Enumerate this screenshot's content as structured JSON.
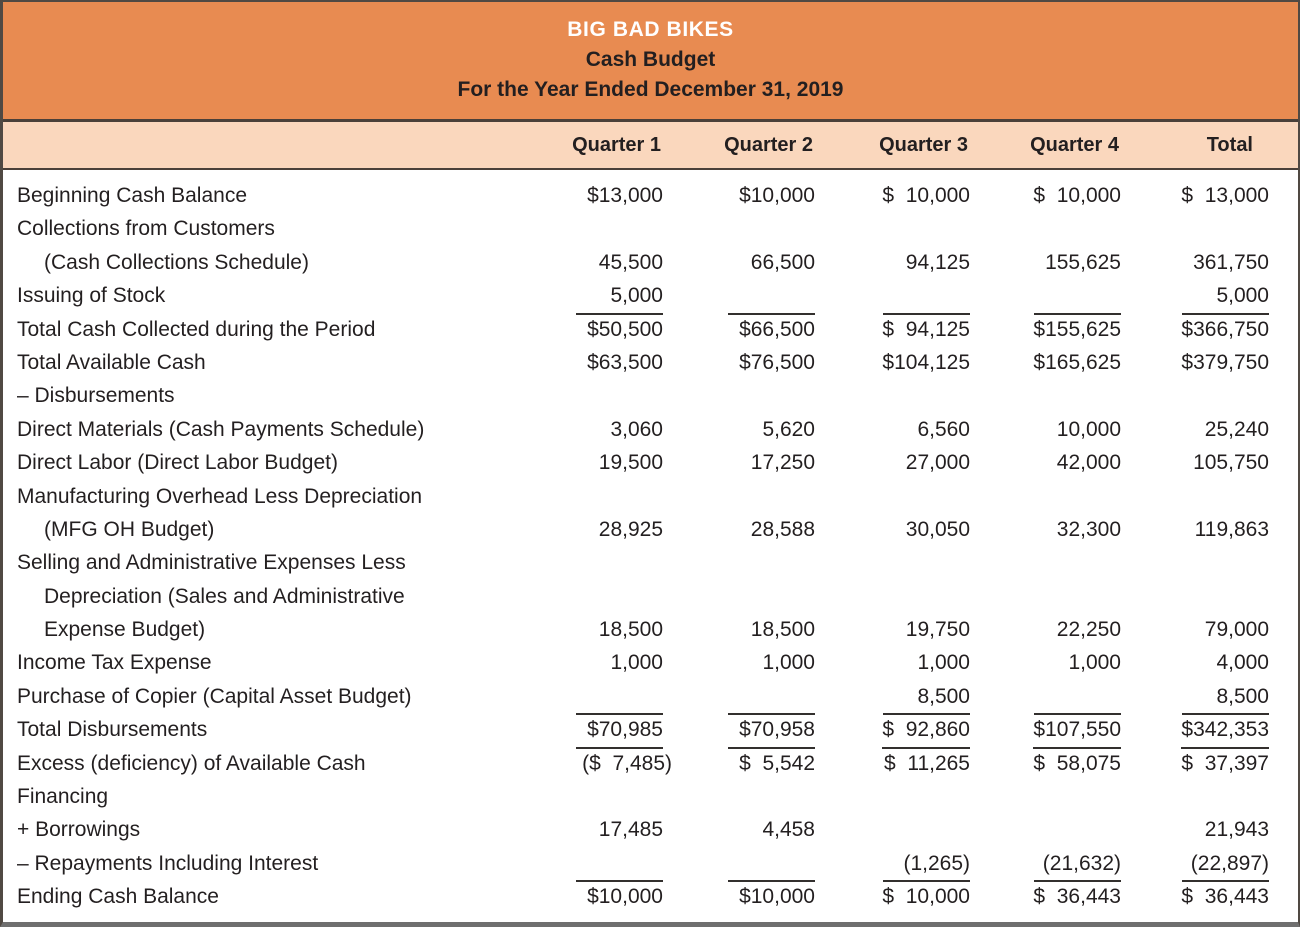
{
  "title_band": {
    "company": "BIG BAD BIKES",
    "report": "Cash Budget",
    "period": "For the Year Ended December 31, 2019"
  },
  "table": {
    "columns": [
      "Quarter 1",
      "Quarter 2",
      "Quarter 3",
      "Quarter 4",
      "Total"
    ],
    "rows": [
      {
        "label": "Beginning Cash Balance",
        "cells": [
          "$13,000",
          "$10,000",
          "$  10,000",
          "$  10,000",
          "$  13,000"
        ]
      },
      {
        "label": "Collections from Customers",
        "cells": [
          "",
          "",
          "",
          "",
          ""
        ]
      },
      {
        "label": "(Cash Collections Schedule)",
        "indent": 1,
        "cells": [
          "45,500",
          "66,500",
          "94,125",
          "155,625",
          "361,750"
        ]
      },
      {
        "label": "Issuing of Stock",
        "cells": [
          "5,000",
          "",
          "",
          "",
          "5,000"
        ],
        "ul": [
          1,
          1,
          1,
          1,
          1
        ]
      },
      {
        "label": "Total Cash Collected during the Period",
        "cells": [
          "$50,500",
          "$66,500",
          "$  94,125",
          "$155,625",
          "$366,750"
        ]
      },
      {
        "label": "Total Available Cash",
        "cells": [
          "$63,500",
          "$76,500",
          "$104,125",
          "$165,625",
          "$379,750"
        ]
      },
      {
        "label": "– Disbursements",
        "cells": [
          "",
          "",
          "",
          "",
          ""
        ]
      },
      {
        "label": "Direct Materials (Cash Payments Schedule)",
        "cells": [
          "3,060",
          "5,620",
          "6,560",
          "10,000",
          "25,240"
        ]
      },
      {
        "label": "Direct Labor (Direct Labor Budget)",
        "cells": [
          "19,500",
          "17,250",
          "27,000",
          "42,000",
          "105,750"
        ]
      },
      {
        "label": "Manufacturing Overhead Less Depreciation",
        "cells": [
          "",
          "",
          "",
          "",
          ""
        ]
      },
      {
        "label": "(MFG OH Budget)",
        "indent": 1,
        "cells": [
          "28,925",
          "28,588",
          "30,050",
          "32,300",
          "119,863"
        ]
      },
      {
        "label": "Selling and Administrative Expenses Less",
        "cells": [
          "",
          "",
          "",
          "",
          ""
        ]
      },
      {
        "label": "Depreciation (Sales and Administrative",
        "indent": 1,
        "cells": [
          "",
          "",
          "",
          "",
          ""
        ]
      },
      {
        "label": "Expense Budget)",
        "indent": 1,
        "cells": [
          "18,500",
          "18,500",
          "19,750",
          "22,250",
          "79,000"
        ]
      },
      {
        "label": "Income Tax Expense",
        "cells": [
          "1,000",
          "1,000",
          "1,000",
          "1,000",
          "4,000"
        ]
      },
      {
        "label": "Purchase of Copier (Capital Asset Budget)",
        "cells": [
          "",
          "",
          "8,500",
          "",
          "8,500"
        ],
        "ul": [
          1,
          1,
          1,
          1,
          1
        ]
      },
      {
        "label": "Total Disbursements",
        "cells": [
          "$70,985",
          "$70,958",
          "$  92,860",
          "$107,550",
          "$342,353"
        ],
        "ul": [
          1,
          1,
          1,
          1,
          1
        ]
      },
      {
        "label": "Excess (deficiency) of Available Cash",
        "cells": [
          "($  7,485)",
          "$  5,542",
          "$  11,265",
          "$  58,075",
          "$  37,397"
        ]
      },
      {
        "label": "Financing",
        "cells": [
          "",
          "",
          "",
          "",
          ""
        ]
      },
      {
        "label": "+ Borrowings",
        "cells": [
          "17,485",
          "4,458",
          "",
          "",
          "21,943"
        ]
      },
      {
        "label": "– Repayments Including Interest",
        "cells": [
          "",
          "",
          "(1,265)",
          "(21,632)",
          "(22,897)"
        ],
        "ul": [
          1,
          1,
          1,
          1,
          1
        ]
      },
      {
        "label": "Ending Cash Balance",
        "cells": [
          "$10,000",
          "$10,000",
          "$  10,000",
          "$  36,443",
          "$  36,443"
        ]
      }
    ]
  },
  "colors": {
    "header_orange": "#E88B51",
    "subheader_peach": "#FAD7BD",
    "divider_dark": "#4A4039",
    "body_text": "#231F20",
    "title_text": "#FFFFFF",
    "bottom_bar_gray": "#6F6F6F"
  }
}
